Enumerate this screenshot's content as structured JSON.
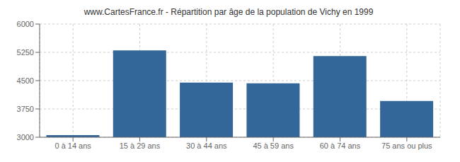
{
  "chart_data": {
    "type": "bar",
    "title": "www.CartesFrance.fr - Répartition par âge de la population de Vichy en 1999",
    "categories": [
      "0 à 14 ans",
      "15 à 29 ans",
      "30 à 44 ans",
      "45 à 59 ans",
      "60 à 74 ans",
      "75 ans ou plus"
    ],
    "values": [
      3055,
      5300,
      4450,
      4430,
      5150,
      3960
    ],
    "color": "#336699",
    "ylim": [
      3000,
      6000
    ],
    "yticks": [
      3000,
      3750,
      4500,
      5250,
      6000
    ],
    "grid": true
  }
}
